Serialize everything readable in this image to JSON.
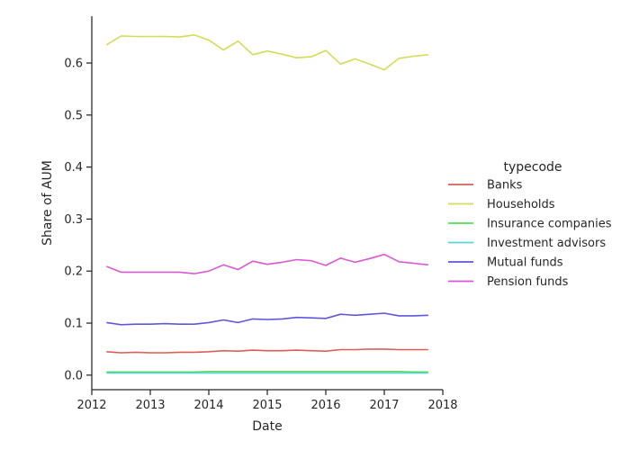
{
  "chart_data": {
    "type": "line",
    "title": "",
    "xlabel": "Date",
    "ylabel": "Share of AUM",
    "xlim": [
      2012,
      2018
    ],
    "ylim": [
      -0.028,
      0.69
    ],
    "xticks": [
      2012,
      2013,
      2014,
      2015,
      2016,
      2017,
      2018
    ],
    "xtick_labels": [
      "2012",
      "2013",
      "2014",
      "2015",
      "2016",
      "2017",
      "2018"
    ],
    "yticks": [
      0.0,
      0.1,
      0.2,
      0.3,
      0.4,
      0.5,
      0.6
    ],
    "ytick_labels": [
      "0.0",
      "0.1",
      "0.2",
      "0.3",
      "0.4",
      "0.5",
      "0.6"
    ],
    "grid": false,
    "legend_title": "typecode",
    "legend_position": "right",
    "x": [
      2012.25,
      2012.5,
      2012.75,
      2013.0,
      2013.25,
      2013.5,
      2013.75,
      2014.0,
      2014.25,
      2014.5,
      2014.75,
      2015.0,
      2015.25,
      2015.5,
      2015.75,
      2016.0,
      2016.25,
      2016.5,
      2016.75,
      2017.0,
      2017.25,
      2017.5,
      2017.75
    ],
    "series": [
      {
        "name": "Banks",
        "color": "#db5f57",
        "values": [
          0.045,
          0.043,
          0.044,
          0.043,
          0.043,
          0.044,
          0.044,
          0.045,
          0.047,
          0.046,
          0.048,
          0.047,
          0.047,
          0.048,
          0.047,
          0.046,
          0.049,
          0.049,
          0.05,
          0.05,
          0.049,
          0.049,
          0.049
        ]
      },
      {
        "name": "Households",
        "color": "#d3db57",
        "values": [
          0.635,
          0.652,
          0.651,
          0.651,
          0.651,
          0.65,
          0.654,
          0.644,
          0.625,
          0.642,
          0.616,
          0.623,
          0.617,
          0.61,
          0.612,
          0.624,
          0.598,
          0.608,
          0.598,
          0.587,
          0.609,
          0.613,
          0.616
        ]
      },
      {
        "name": "Insurance companies",
        "color": "#57db5f",
        "values": [
          0.006,
          0.006,
          0.006,
          0.006,
          0.006,
          0.006,
          0.006,
          0.007,
          0.007,
          0.007,
          0.007,
          0.007,
          0.007,
          0.007,
          0.007,
          0.007,
          0.007,
          0.007,
          0.007,
          0.007,
          0.007,
          0.006,
          0.006
        ]
      },
      {
        "name": "Investment advisors",
        "color": "#57d3db",
        "values": [
          0.004,
          0.004,
          0.004,
          0.004,
          0.004,
          0.004,
          0.004,
          0.004,
          0.004,
          0.004,
          0.004,
          0.004,
          0.004,
          0.004,
          0.004,
          0.004,
          0.004,
          0.004,
          0.004,
          0.004,
          0.004,
          0.004,
          0.004
        ]
      },
      {
        "name": "Mutual funds",
        "color": "#5f57db",
        "values": [
          0.101,
          0.097,
          0.098,
          0.098,
          0.099,
          0.098,
          0.098,
          0.101,
          0.106,
          0.101,
          0.108,
          0.107,
          0.108,
          0.111,
          0.11,
          0.109,
          0.117,
          0.115,
          0.117,
          0.119,
          0.114,
          0.114,
          0.115
        ]
      },
      {
        "name": "Pension funds",
        "color": "#db57d3",
        "values": [
          0.209,
          0.198,
          0.198,
          0.198,
          0.198,
          0.198,
          0.195,
          0.2,
          0.212,
          0.203,
          0.219,
          0.213,
          0.217,
          0.222,
          0.22,
          0.211,
          0.225,
          0.217,
          0.224,
          0.232,
          0.218,
          0.215,
          0.212
        ]
      }
    ]
  }
}
